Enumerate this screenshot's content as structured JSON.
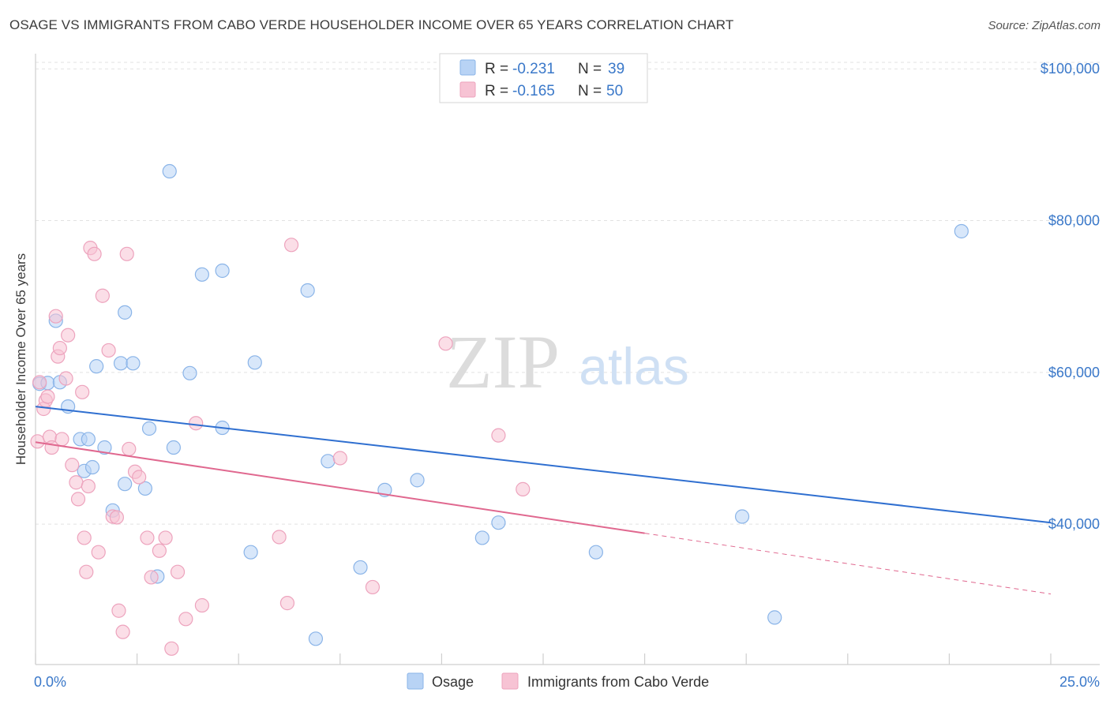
{
  "header": {
    "title": "OSAGE VS IMMIGRANTS FROM CABO VERDE HOUSEHOLDER INCOME OVER 65 YEARS CORRELATION CHART",
    "source": "Source: ZipAtlas.com"
  },
  "watermark": {
    "zip": "ZIP",
    "atlas": "atlas"
  },
  "colors": {
    "osage_fill": "#b8d3f5",
    "osage_stroke": "#8ab4e8",
    "osage_line": "#2f6fd0",
    "cabo_fill": "#f7c3d4",
    "cabo_stroke": "#eda3bd",
    "cabo_line": "#e0688f",
    "value_text": "#3a78c9",
    "grid": "#e2e2e2"
  },
  "legend_top": [
    {
      "r_label": "R = ",
      "r_value": "-0.231",
      "n_label": "N = ",
      "n_value": "39"
    },
    {
      "r_label": "R = ",
      "r_value": "-0.165",
      "n_label": "N = ",
      "n_value": "50"
    }
  ],
  "chart_data": {
    "type": "scatter",
    "title": "OSAGE VS IMMIGRANTS FROM CABO VERDE HOUSEHOLDER INCOME OVER 65 YEARS CORRELATION CHART",
    "xlabel": "",
    "ylabel": "Householder Income Over 65 years",
    "xlim": [
      0,
      25
    ],
    "ylim": [
      21500,
      102000
    ],
    "x_tick_labels": [
      "0.0%",
      "25.0%"
    ],
    "y_ticks": [
      {
        "value": 40000,
        "label": "$40,000"
      },
      {
        "value": 60000,
        "label": "$60,000"
      },
      {
        "value": 80000,
        "label": "$80,000"
      },
      {
        "value": 100000,
        "label": "$100,000"
      }
    ],
    "grid": true,
    "legend_position": "bottom-center",
    "series": [
      {
        "name": "Osage",
        "trend": {
          "x0": 0,
          "y0": 55500,
          "x1": 25,
          "y1": 40200
        },
        "points": [
          [
            0.1,
            58500
          ],
          [
            0.3,
            58600
          ],
          [
            0.5,
            66800
          ],
          [
            0.8,
            55500
          ],
          [
            0.6,
            58700
          ],
          [
            1.1,
            51200
          ],
          [
            1.2,
            47000
          ],
          [
            1.3,
            51200
          ],
          [
            1.4,
            47500
          ],
          [
            1.5,
            60800
          ],
          [
            1.7,
            50100
          ],
          [
            1.9,
            41800
          ],
          [
            2.2,
            67900
          ],
          [
            2.1,
            61200
          ],
          [
            2.2,
            45300
          ],
          [
            2.4,
            61200
          ],
          [
            2.7,
            44700
          ],
          [
            2.8,
            52600
          ],
          [
            3.0,
            33100
          ],
          [
            3.3,
            86500
          ],
          [
            3.4,
            50100
          ],
          [
            3.8,
            59900
          ],
          [
            4.1,
            72900
          ],
          [
            4.6,
            73400
          ],
          [
            4.6,
            52700
          ],
          [
            5.3,
            36300
          ],
          [
            5.4,
            61300
          ],
          [
            6.7,
            70800
          ],
          [
            6.9,
            24900
          ],
          [
            7.2,
            48300
          ],
          [
            8.0,
            34300
          ],
          [
            8.6,
            44500
          ],
          [
            9.4,
            45800
          ],
          [
            11.0,
            38200
          ],
          [
            11.4,
            40200
          ],
          [
            13.8,
            36300
          ],
          [
            17.4,
            41000
          ],
          [
            18.2,
            27700
          ],
          [
            22.8,
            78600
          ]
        ]
      },
      {
        "name": "Immigrants from Cabo Verde",
        "trend": {
          "x0": 0,
          "y0": 50800,
          "x1": 15,
          "y1": 38800,
          "dash_to_x": 25,
          "dash_to_y": 30800
        },
        "points": [
          [
            0.05,
            50900
          ],
          [
            0.1,
            58700
          ],
          [
            0.2,
            55200
          ],
          [
            0.25,
            56300
          ],
          [
            0.35,
            51500
          ],
          [
            0.4,
            50100
          ],
          [
            0.5,
            67400
          ],
          [
            0.55,
            62100
          ],
          [
            0.6,
            63200
          ],
          [
            0.65,
            51200
          ],
          [
            0.75,
            59200
          ],
          [
            0.8,
            64900
          ],
          [
            0.9,
            47800
          ],
          [
            1.0,
            45500
          ],
          [
            1.05,
            43300
          ],
          [
            1.15,
            57400
          ],
          [
            1.2,
            38200
          ],
          [
            1.25,
            33700
          ],
          [
            1.3,
            45000
          ],
          [
            1.35,
            76400
          ],
          [
            1.45,
            75600
          ],
          [
            1.55,
            36300
          ],
          [
            1.65,
            70100
          ],
          [
            1.8,
            62900
          ],
          [
            1.9,
            41000
          ],
          [
            2.0,
            40900
          ],
          [
            2.05,
            28600
          ],
          [
            2.15,
            25800
          ],
          [
            2.25,
            75600
          ],
          [
            2.3,
            49900
          ],
          [
            2.45,
            46900
          ],
          [
            2.55,
            46200
          ],
          [
            2.75,
            38200
          ],
          [
            2.85,
            33000
          ],
          [
            3.05,
            36500
          ],
          [
            3.2,
            38200
          ],
          [
            3.35,
            23600
          ],
          [
            3.5,
            33700
          ],
          [
            3.7,
            27500
          ],
          [
            3.95,
            53300
          ],
          [
            4.1,
            29300
          ],
          [
            6.0,
            38300
          ],
          [
            6.2,
            29600
          ],
          [
            6.3,
            76800
          ],
          [
            7.5,
            48700
          ],
          [
            8.3,
            31700
          ],
          [
            10.1,
            63800
          ],
          [
            11.4,
            51700
          ],
          [
            12.0,
            44600
          ],
          [
            0.3,
            56800
          ]
        ]
      }
    ]
  }
}
